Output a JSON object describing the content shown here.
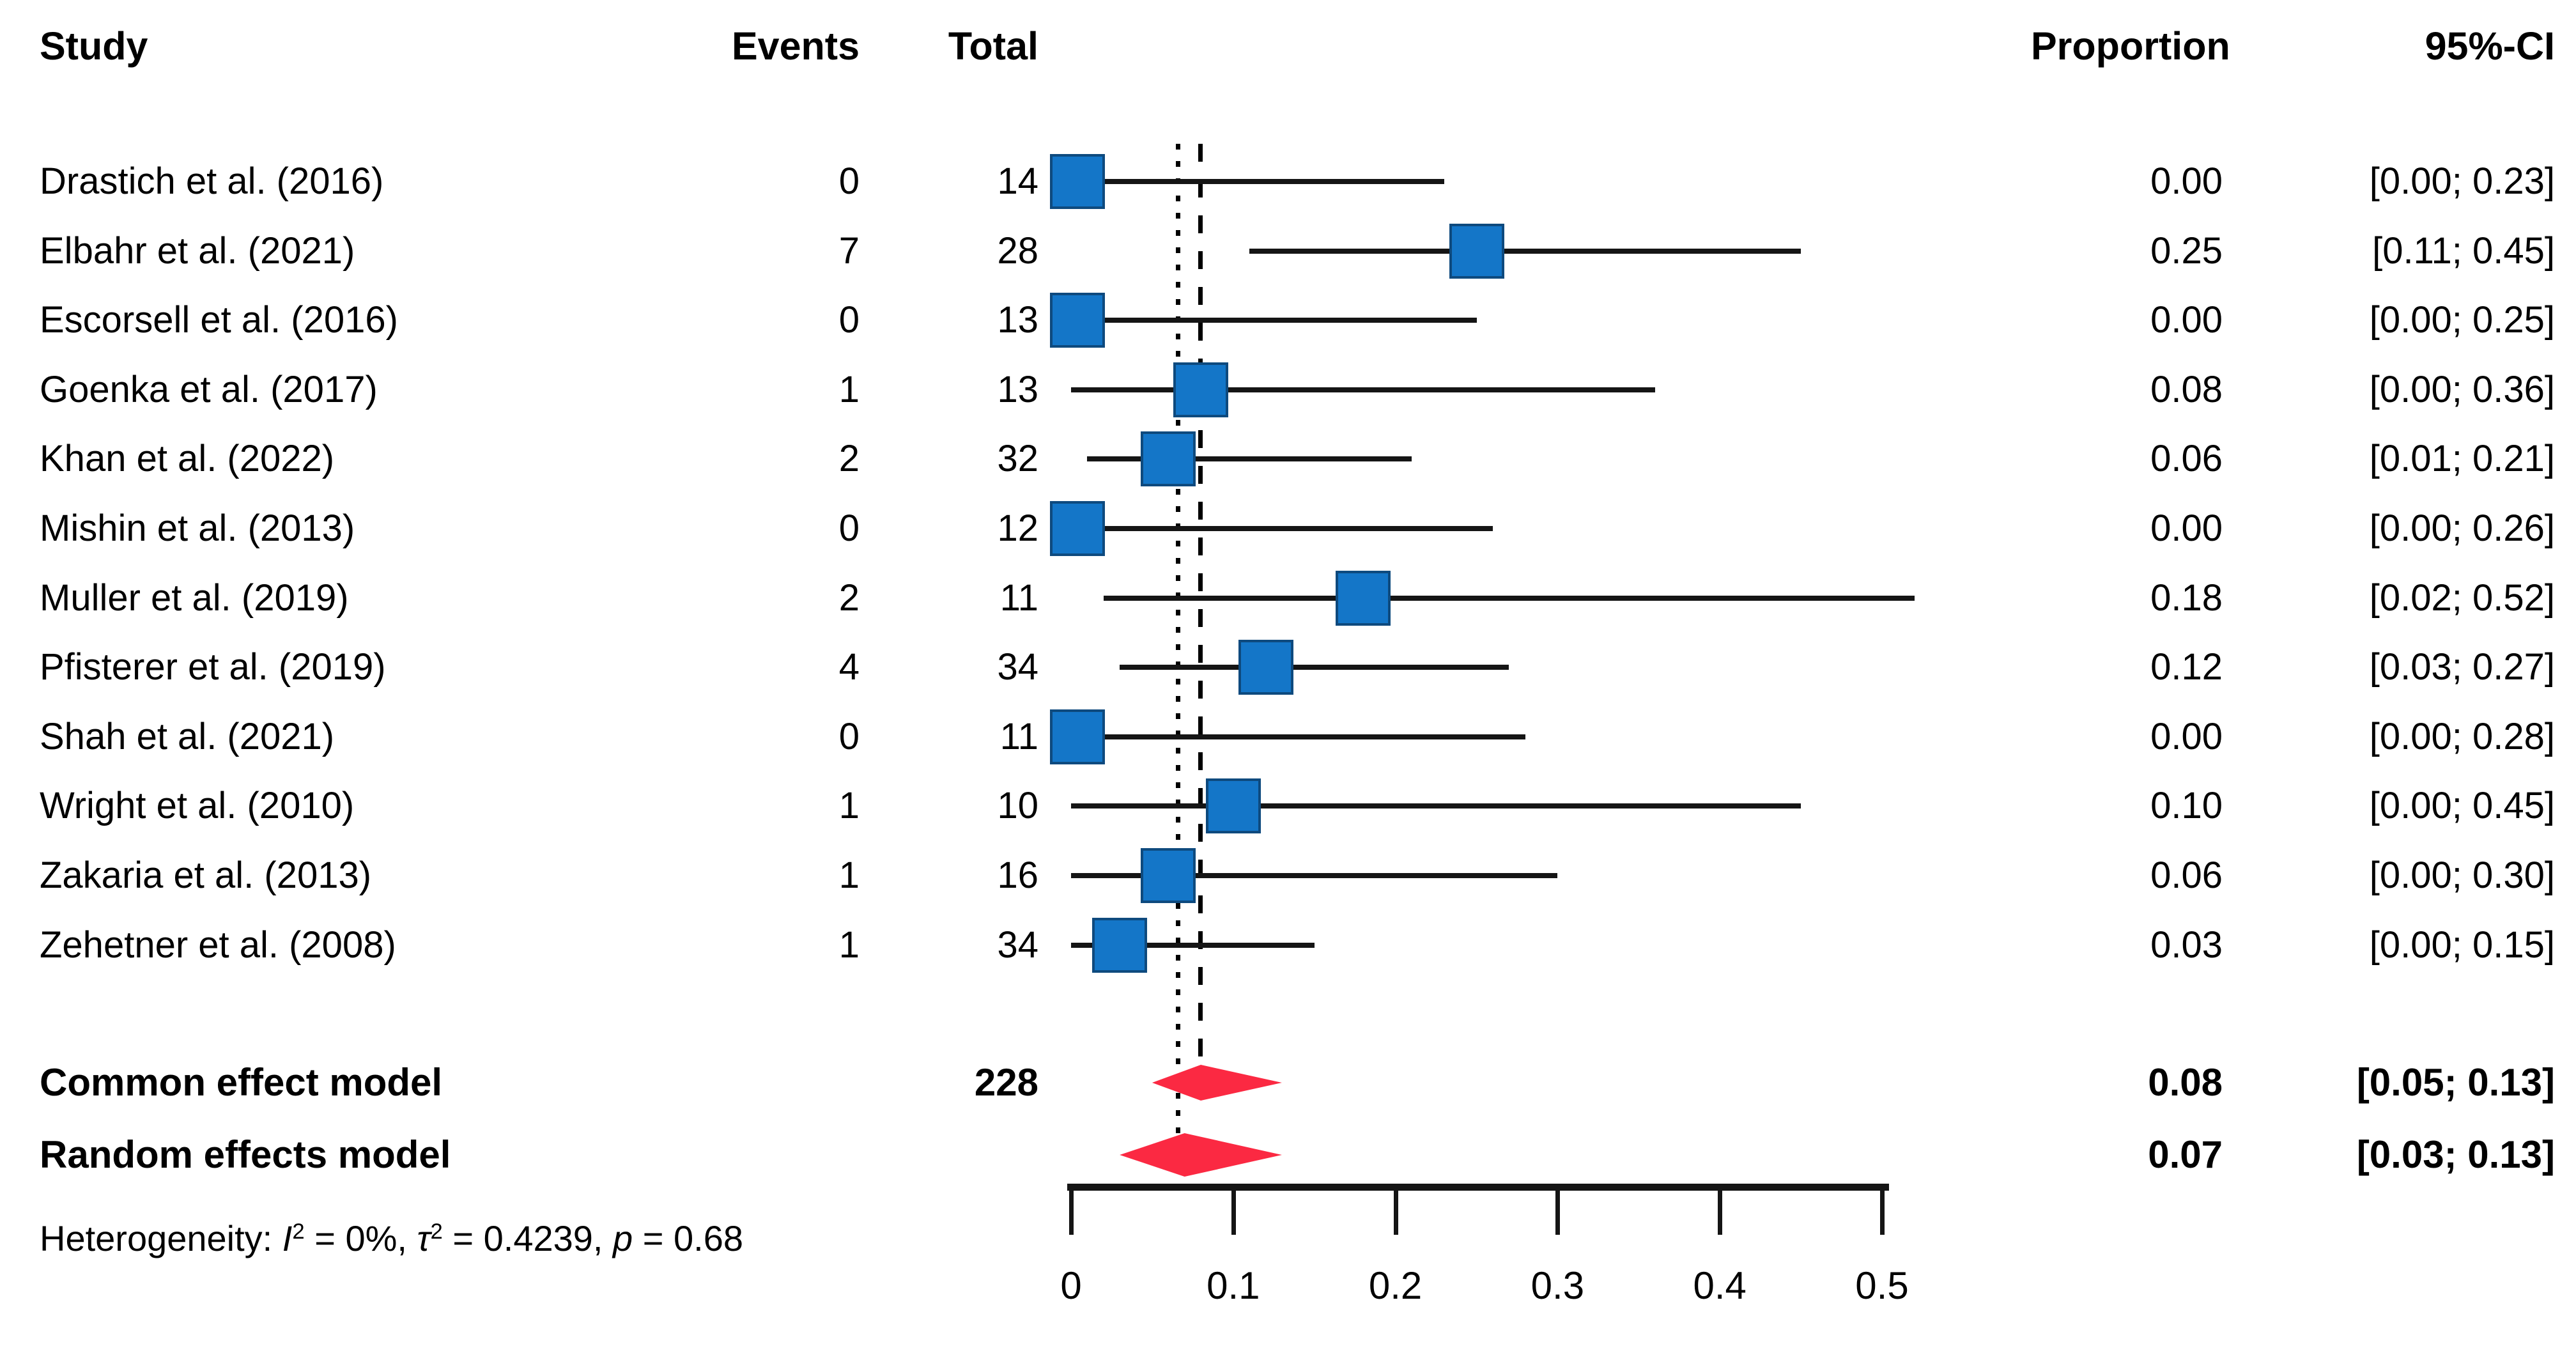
{
  "chart_data": {
    "type": "forest",
    "columns": {
      "study": "Study",
      "events": "Events",
      "total": "Total",
      "proportion": "Proportion",
      "ci": "95%-CI"
    },
    "studies": [
      {
        "label": "Drastich et al. (2016)",
        "events": "0",
        "total": "14",
        "proportion": "0.00",
        "ci": "[0.00; 0.23]",
        "est": 0.0,
        "lo": 0.0,
        "hi": 0.23
      },
      {
        "label": "Elbahr et al. (2021)",
        "events": "7",
        "total": "28",
        "proportion": "0.25",
        "ci": "[0.11; 0.45]",
        "est": 0.25,
        "lo": 0.11,
        "hi": 0.45
      },
      {
        "label": "Escorsell et al. (2016)",
        "events": "0",
        "total": "13",
        "proportion": "0.00",
        "ci": "[0.00; 0.25]",
        "est": 0.0,
        "lo": 0.0,
        "hi": 0.25
      },
      {
        "label": "Goenka et al. (2017)",
        "events": "1",
        "total": "13",
        "proportion": "0.08",
        "ci": "[0.00; 0.36]",
        "est": 0.08,
        "lo": 0.0,
        "hi": 0.36
      },
      {
        "label": "Khan et al. (2022)",
        "events": "2",
        "total": "32",
        "proportion": "0.06",
        "ci": "[0.01; 0.21]",
        "est": 0.06,
        "lo": 0.01,
        "hi": 0.21
      },
      {
        "label": "Mishin et al. (2013)",
        "events": "0",
        "total": "12",
        "proportion": "0.00",
        "ci": "[0.00; 0.26]",
        "est": 0.0,
        "lo": 0.0,
        "hi": 0.26
      },
      {
        "label": "Muller et al. (2019)",
        "events": "2",
        "total": "11",
        "proportion": "0.18",
        "ci": "[0.02; 0.52]",
        "est": 0.18,
        "lo": 0.02,
        "hi": 0.52
      },
      {
        "label": "Pfisterer et al. (2019)",
        "events": "4",
        "total": "34",
        "proportion": "0.12",
        "ci": "[0.03; 0.27]",
        "est": 0.12,
        "lo": 0.03,
        "hi": 0.27
      },
      {
        "label": "Shah et al. (2021)",
        "events": "0",
        "total": "11",
        "proportion": "0.00",
        "ci": "[0.00; 0.28]",
        "est": 0.0,
        "lo": 0.0,
        "hi": 0.28
      },
      {
        "label": "Wright et al. (2010)",
        "events": "1",
        "total": "10",
        "proportion": "0.10",
        "ci": "[0.00; 0.45]",
        "est": 0.1,
        "lo": 0.0,
        "hi": 0.45
      },
      {
        "label": "Zakaria et al. (2013)",
        "events": "1",
        "total": "16",
        "proportion": "0.06",
        "ci": "[0.00; 0.30]",
        "est": 0.06,
        "lo": 0.0,
        "hi": 0.3
      },
      {
        "label": "Zehetner et al. (2008)",
        "events": "1",
        "total": "34",
        "proportion": "0.03",
        "ci": "[0.00; 0.15]",
        "est": 0.03,
        "lo": 0.0,
        "hi": 0.15
      }
    ],
    "summary": [
      {
        "label": "Common effect model",
        "total": "228",
        "proportion": "0.08",
        "ci": "[0.05; 0.13]",
        "est": 0.08,
        "lo": 0.05,
        "hi": 0.13,
        "reference_line": "dashed"
      },
      {
        "label": "Random effects model",
        "total": "",
        "proportion": "0.07",
        "ci": "[0.03; 0.13]",
        "est": 0.07,
        "lo": 0.03,
        "hi": 0.13,
        "reference_line": "dotted"
      }
    ],
    "heterogeneity": {
      "prefix": "Heterogeneity: ",
      "i": "I",
      "i_sup": "2",
      "seg1": " = 0%, ",
      "tau": "τ",
      "tau_sup": "2",
      "seg2": " = 0.4239, ",
      "p": "p",
      "seg3": " = 0.68"
    },
    "axis": {
      "xlim": [
        0,
        0.5
      ],
      "ticks": [
        0,
        0.1,
        0.2,
        0.3,
        0.4,
        0.5
      ],
      "labels": [
        "0",
        "0.1",
        "0.2",
        "0.3",
        "0.4",
        "0.5"
      ],
      "grid": false
    },
    "colors": {
      "square_fill": "#1476C8",
      "square_border": "#0E4A7E",
      "diamond": "#FB2942",
      "line": "#151515"
    }
  }
}
